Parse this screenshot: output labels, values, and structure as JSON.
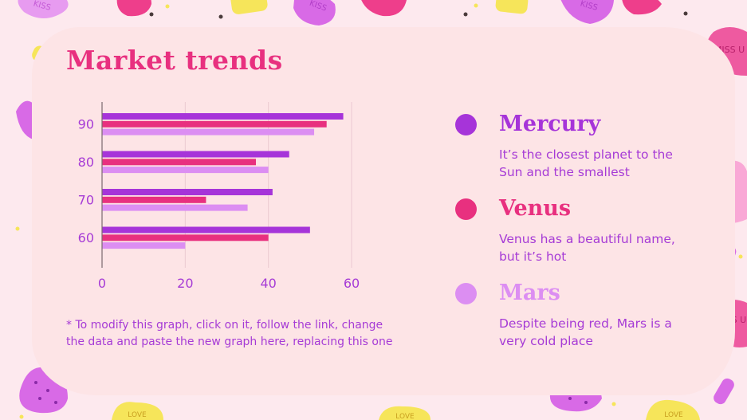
{
  "slide": {
    "title": "Market trends",
    "note": "* To modify this graph, click on it, follow the link, change the data and paste the new graph here, replacing this one"
  },
  "legend": [
    {
      "name": "Mercury",
      "desc": "It’s the closest planet to the Sun and the smallest",
      "color": "#a634d9"
    },
    {
      "name": "Venus",
      "desc": "Venus has a beautiful name, but it’s hot",
      "color": "#e8307f"
    },
    {
      "name": "Mars",
      "desc": "Despite being red, Mars is a very cold place",
      "color": "#dc8ef2"
    }
  ],
  "decor": {
    "heart_labels": [
      "KISS",
      "KISS",
      "KISS",
      "MISS U",
      "MISS U",
      "LOVE",
      "LOVE",
      "LOVE"
    ]
  },
  "chart_data": {
    "type": "bar",
    "orientation": "horizontal",
    "categories": [
      "90",
      "80",
      "70",
      "60"
    ],
    "series": [
      {
        "name": "Mercury",
        "color": "#a634d9",
        "values": [
          58,
          45,
          41,
          50
        ]
      },
      {
        "name": "Venus",
        "color": "#e8307f",
        "values": [
          54,
          37,
          25,
          40
        ]
      },
      {
        "name": "Mars",
        "color": "#dc8ef2",
        "values": [
          51,
          40,
          35,
          20
        ]
      }
    ],
    "xticks": [
      0,
      20,
      40,
      60
    ],
    "xlim": [
      0,
      60
    ],
    "grid": true,
    "title": "",
    "xlabel": "",
    "ylabel": ""
  }
}
